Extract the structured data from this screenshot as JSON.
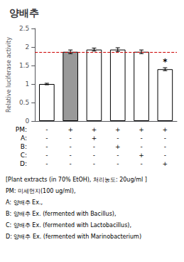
{
  "chart_data": {
    "type": "bar",
    "title": "양배추",
    "categories": [
      null,
      null,
      null,
      null,
      null,
      null
    ],
    "values": [
      1.0,
      1.87,
      1.93,
      1.93,
      1.87,
      1.4
    ],
    "errors": [
      0.02,
      0.05,
      0.04,
      0.05,
      0.05,
      0.04
    ],
    "colors": [
      "white",
      "#999999",
      "white",
      "white",
      "white",
      "white"
    ],
    "edge_color": "black",
    "reference_line": {
      "value": 1.87,
      "color": "#cc0000",
      "line_style": "dashed"
    },
    "annotations": [
      {
        "text": "*",
        "category_index": 5
      }
    ],
    "ylabel": "Relative luciferase activity",
    "ylim": [
      0,
      2.5
    ],
    "yticks": [
      0,
      0.5,
      1,
      1.5,
      2,
      2.5
    ],
    "grid": false,
    "table_rows": [
      {
        "label": "PM:",
        "values": [
          "-",
          "+",
          "+",
          "+",
          "+",
          "+"
        ]
      },
      {
        "label": "A:",
        "values": [
          "-",
          "-",
          "+",
          "-",
          "-",
          "-"
        ]
      },
      {
        "label": "B:",
        "values": [
          "-",
          "-",
          "-",
          "+",
          "-",
          "-"
        ]
      },
      {
        "label": "C:",
        "values": [
          "-",
          "-",
          "-",
          "-",
          "+",
          "-"
        ]
      },
      {
        "label": "D:",
        "values": [
          "-",
          "-",
          "-",
          "-",
          "-",
          "+"
        ]
      }
    ],
    "footnote": [
      "[Plant extracts (in 70% EtOH), 처리농도: 20ug/ml ]",
      "PM: 미세먼지(100 ug/ml),",
      "A: 양배추 Ex.,",
      "B: 양배추 Ex. (fermented with Bacillus),",
      "C: 양배추 Ex. (fermented with Lactobacillus),",
      "D: 양배추 Ex. (fermented with Marinobacterium)"
    ]
  }
}
